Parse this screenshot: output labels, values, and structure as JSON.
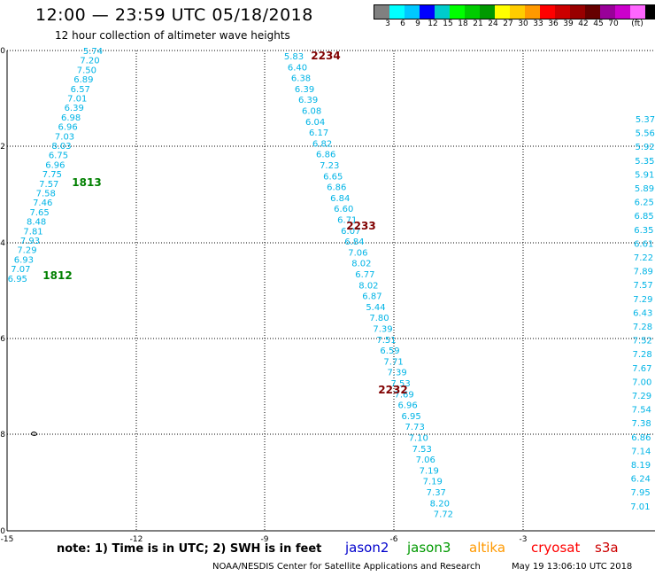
{
  "header": {
    "title": "12:00 — 23:59 UTC 05/18/2018",
    "subtitle": "12 hour collection of altimeter wave heights"
  },
  "legend": {
    "colors": [
      "#808080",
      "#00ffff",
      "#00c8ff",
      "#0000ff",
      "#00cccc",
      "#00ff00",
      "#00cc00",
      "#009900",
      "#ffff00",
      "#ffcc00",
      "#ff9900",
      "#ff0000",
      "#cc0000",
      "#990000",
      "#660000",
      "#990099",
      "#cc00cc",
      "#ff66ff",
      "#000000"
    ],
    "labels": [
      "3",
      "6",
      "9",
      "12",
      "15",
      "18",
      "21",
      "24",
      "27",
      "30",
      "33",
      "36",
      "39",
      "42",
      "45",
      "70",
      "(ft)"
    ]
  },
  "axes": {
    "x_ticks": [
      "-15",
      "-12",
      "-9",
      "-6",
      "-3"
    ],
    "y_ticks": [
      "0",
      "-2",
      "-4",
      "-6",
      "-8",
      "-10"
    ]
  },
  "passes": [
    {
      "id": "west",
      "values": [
        "5.74",
        "7.20",
        "7.50",
        "6.89",
        "6.57",
        "7.01",
        "6.39",
        "6.98",
        "6.96",
        "7.03",
        "8.03",
        "6.75",
        "6.96",
        "7.75",
        "7.57",
        "7.58",
        "7.46",
        "7.65",
        "8.48",
        "7.81",
        "7.93",
        "7.29",
        "6.93",
        "7.07",
        "6.95"
      ],
      "labels": [
        {
          "text": "1813",
          "color": "#008000"
        },
        {
          "text": "1812",
          "color": "#008000"
        }
      ]
    },
    {
      "id": "middle",
      "values": [
        "5.83",
        "6.40",
        "6.38",
        "6.39",
        "6.39",
        "6.08",
        "6.04",
        "6.17",
        "6.82",
        "6.86",
        "7.23",
        "6.65",
        "6.86",
        "6.84",
        "6.60",
        "6.71",
        "6.07",
        "6.84",
        "7.06",
        "8.02",
        "6.77",
        "8.02",
        "6.87",
        "5.44",
        "7.80",
        "7.39",
        "7.51",
        "6.59",
        "7.71",
        "7.39",
        "7.53",
        "7.69",
        "6.96",
        "6.95",
        "7.73",
        "7.10",
        "7.53",
        "7.06",
        "7.19",
        "7.19",
        "7.37",
        "8.20",
        "7.72"
      ],
      "labels": [
        {
          "text": "2234",
          "color": "#800000"
        },
        {
          "text": "2233",
          "color": "#800000"
        },
        {
          "text": "2232",
          "color": "#800000"
        }
      ]
    },
    {
      "id": "east",
      "values": [
        "5.37",
        "5.56",
        "5.92",
        "5.35",
        "5.91",
        "5.89",
        "6.25",
        "6.85",
        "6.35",
        "6.61",
        "7.22",
        "7.89",
        "7.57",
        "7.29",
        "6.43",
        "7.28",
        "7.52",
        "7.28",
        "7.67",
        "7.00",
        "7.29",
        "7.54",
        "7.38",
        "6.86",
        "7.14",
        "8.19",
        "6.24",
        "7.95",
        "7.01"
      ]
    }
  ],
  "footer": {
    "note": "note:  1) Time is in UTC;  2) SWH is in feet",
    "satellites": [
      {
        "name": "jason2",
        "color": "#0000cc"
      },
      {
        "name": "jason3",
        "color": "#009900"
      },
      {
        "name": "altika",
        "color": "#ff9900"
      },
      {
        "name": "cryosat",
        "color": "#ff0000"
      },
      {
        "name": "s3a",
        "color": "#cc0000"
      }
    ],
    "credit": "NOAA/NESDIS Center for Satellite Applications and Research",
    "timestamp": "May 19 13:06:10 UTC 2018"
  }
}
